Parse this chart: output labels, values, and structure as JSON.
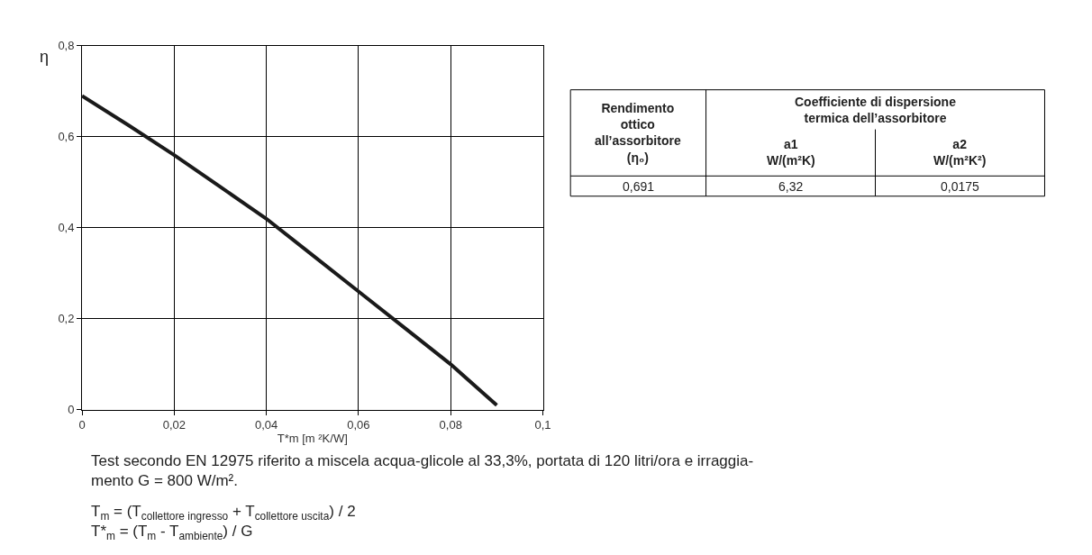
{
  "chart_data": {
    "type": "line",
    "xlabel": "T*m [m ²K/W]",
    "ylabel": "η",
    "x": [
      0,
      0.01,
      0.02,
      0.03,
      0.04,
      0.05,
      0.06,
      0.07,
      0.08,
      0.09
    ],
    "series": [
      {
        "color": "#1a1a1a",
        "values": [
          0.69,
          0.626,
          0.56,
          0.49,
          0.42,
          0.34,
          0.26,
          0.18,
          0.1,
          0.01
        ]
      }
    ],
    "xlim": [
      0,
      0.1
    ],
    "xticks": [
      {
        "value": 0,
        "label": "0"
      },
      {
        "value": 0.02,
        "label": "0,02"
      },
      {
        "value": 0.04,
        "label": "0,04"
      },
      {
        "value": 0.06,
        "label": "0,06"
      },
      {
        "value": 0.08,
        "label": "0,08"
      },
      {
        "value": 0.1,
        "label": "0,1"
      }
    ],
    "ylim": [
      0,
      0.8
    ],
    "yticks": [
      {
        "value": 0,
        "label": "0"
      },
      {
        "value": 0.2,
        "label": "0,2"
      },
      {
        "value": 0.4,
        "label": "0,4"
      },
      {
        "value": 0.6,
        "label": "0,6"
      },
      {
        "value": 0.8,
        "label": "0,8"
      }
    ],
    "grid": true,
    "line_style": "solid",
    "marker": "none",
    "annotations": [
      "Rendimento\nottico\nall’assorbitore\n(η₀)",
      "Coefficiente di dispersione\ntermica dell’assorbitore",
      "a1\nW/(m²K)",
      "a2\nW/(m²K²)",
      "0,691",
      "6,32",
      "0,0175",
      "Test secondo EN 12975 riferito a miscela acqua-glicole al 33,3%, portata di 120 litri/ora e irraggia-\nmento G = 800 W/m².",
      "T$_{m}$ = (T$_{collettore ingresso}$ + T$_{collettore uscita}$) / 2",
      "T*$_{m}$ = (T$_{m}$ - T$_{ambiente}$) / G"
    ]
  }
}
